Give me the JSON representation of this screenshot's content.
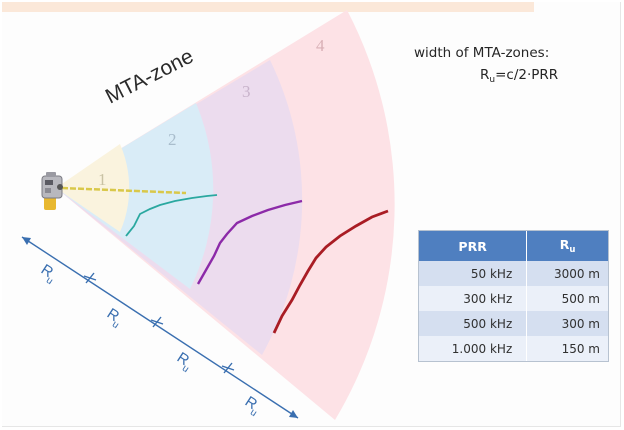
{
  "zone_label": "MTA-zone",
  "zone_numbers": [
    "1",
    "2",
    "3",
    "4"
  ],
  "formula": {
    "line1": "width of MTA-zones:",
    "lhs": "R",
    "lhs_sub": "u",
    "rhs": "=c/2·PRR"
  },
  "range_label": {
    "main": "R",
    "sub": "u"
  },
  "table": {
    "header_prr": "PRR",
    "header_ru": "R",
    "header_ru_sub": "u",
    "rows": [
      {
        "prr": "50 kHz",
        "ru": "3000 m"
      },
      {
        "prr": "300 kHz",
        "ru": "500 m"
      },
      {
        "prr": "500 kHz",
        "ru": "300 m"
      },
      {
        "prr": "1.000 kHz",
        "ru": "150 m"
      }
    ]
  },
  "colors": {
    "zone1": "#faf3de",
    "zone2": "#d9ecf7",
    "zone3": "#ecdcee",
    "zone4": "#fde2e6",
    "echo_zone2": "#2aa8a0",
    "echo_zone3": "#8c2aa8",
    "echo_zone4": "#a91c24",
    "laser_beam": "#d9c84a",
    "arrow": "#3a6fb0",
    "table_header": "#4f7fc0"
  },
  "icons": [
    "laser-scanner-icon"
  ]
}
